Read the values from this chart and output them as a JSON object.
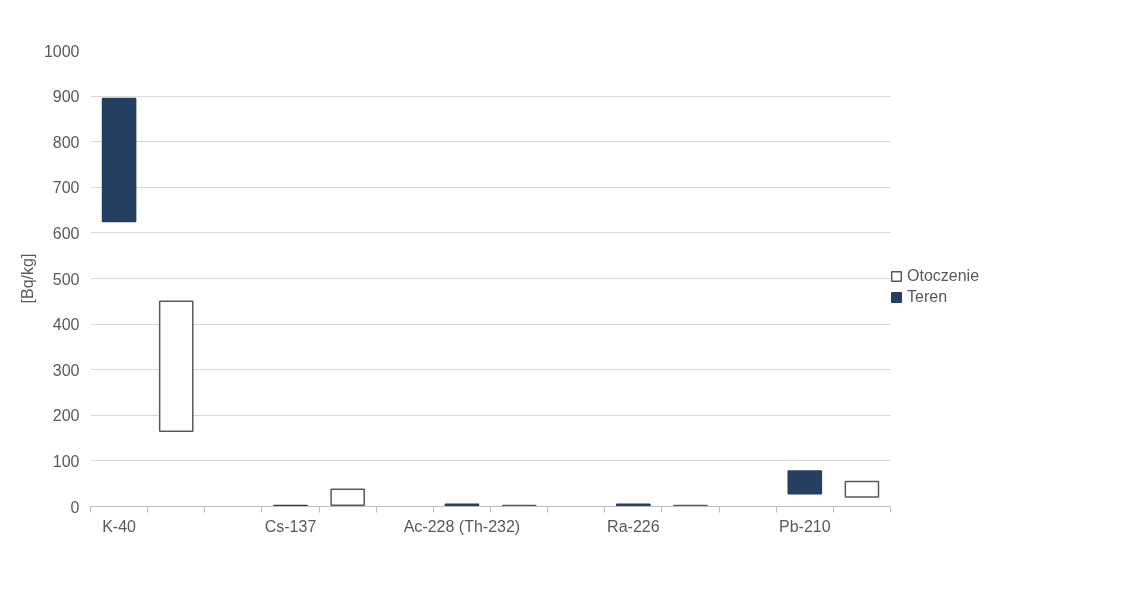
{
  "chart_data": {
    "type": "bar",
    "ylabel": "[Bq/kg]",
    "categories": [
      "K-40",
      null,
      null,
      "Cs-137",
      null,
      null,
      "Ac-228 (Th-232)",
      null,
      null,
      "Ra-226",
      null,
      null,
      "Pb-210",
      null
    ],
    "series": [
      {
        "name": "Otoczenie",
        "color": "#ffffff",
        "values": [
          null,
          285,
          null,
          null,
          35,
          null,
          null,
          2,
          null,
          null,
          2,
          null,
          null,
          34
        ],
        "base": [
          null,
          165,
          null,
          null,
          3,
          null,
          null,
          0,
          null,
          null,
          0,
          null,
          null,
          21
        ]
      },
      {
        "name": "Teren",
        "color": "#243f60",
        "values": [
          270,
          null,
          null,
          2,
          null,
          null,
          5,
          null,
          null,
          5,
          null,
          null,
          50,
          null
        ],
        "base": [
          625,
          null,
          null,
          0,
          null,
          null,
          0,
          null,
          null,
          0,
          null,
          null,
          28,
          null
        ]
      }
    ],
    "ylim": [
      0,
      1000
    ],
    "yticks": [
      0,
      100,
      200,
      300,
      400,
      500,
      600,
      700,
      800,
      900,
      1000
    ],
    "grid": "y",
    "legend": "right"
  }
}
